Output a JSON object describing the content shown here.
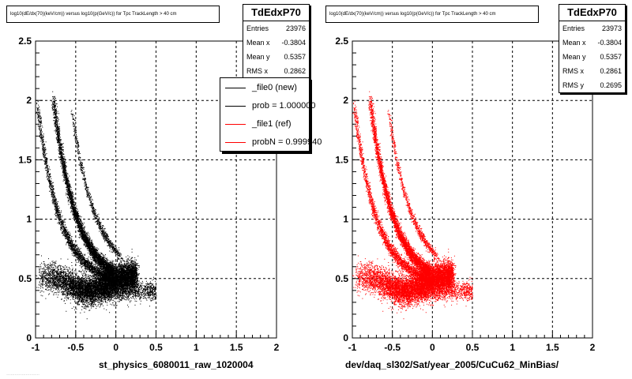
{
  "chart_data": [
    {
      "type": "scatter",
      "title": "log10(dE/dx(70)(keV/cm)) versus log10(p(GeV/c)) for Tpc TrackLength > 40 cm",
      "xlabel": "st_physics_6080011_raw_1020004",
      "ylabel": "",
      "xlim": [
        -1,
        2
      ],
      "ylim": [
        0,
        2.5
      ],
      "xticks": [
        "-1",
        "-0.5",
        "0",
        "0.5",
        "1",
        "1.5",
        "2"
      ],
      "yticks": [
        "0",
        "0.5",
        "1",
        "1.5",
        "2",
        "2.5"
      ],
      "grid": true,
      "marker_color": "#000000",
      "stats": {
        "name": "TdEdxP70",
        "rows": [
          {
            "label": "Entries",
            "value": "23976"
          },
          {
            "label": "Mean x",
            "value": "-0.3804"
          },
          {
            "label": "Mean y",
            "value": "0.5357"
          },
          {
            "label": "RMS x",
            "value": "0.2862"
          }
        ]
      },
      "legend": {
        "placement": "top-right",
        "entries": [
          {
            "label": "_file0 (new)",
            "color": "#000000"
          },
          {
            "label": "prob = 1.000000",
            "color": "#000000"
          },
          {
            "label": "_file1 (ref)",
            "color": "#ff0000"
          },
          {
            "label": "probN = 0.999940",
            "color": "#ff0000"
          }
        ]
      }
    },
    {
      "type": "scatter",
      "title": "log10(dE/dx(70)(keV/cm)) versus log10(p(GeV/c)) for Tpc TrackLength > 40 cm",
      "xlabel": "dev/daq_sl302/Sat/year_2005/CuCu62_MinBias/",
      "ylabel": "",
      "xlim": [
        -1,
        2
      ],
      "ylim": [
        0,
        2.5
      ],
      "xticks": [
        "-1",
        "-0.5",
        "0",
        "0.5",
        "1",
        "1.5",
        "2"
      ],
      "yticks": [
        "0",
        "0.5",
        "1",
        "1.5",
        "2",
        "2.5"
      ],
      "grid": true,
      "marker_color": "#ff0000",
      "stats": {
        "name": "TdEdxP70",
        "rows": [
          {
            "label": "Entries",
            "value": "23973"
          },
          {
            "label": "Mean x",
            "value": "-0.3804"
          },
          {
            "label": "Mean y",
            "value": "0.5357"
          },
          {
            "label": "RMS x",
            "value": "0.2861"
          },
          {
            "label": "RMS y",
            "value": "0.2695"
          }
        ]
      }
    }
  ],
  "footer_text": "........................"
}
